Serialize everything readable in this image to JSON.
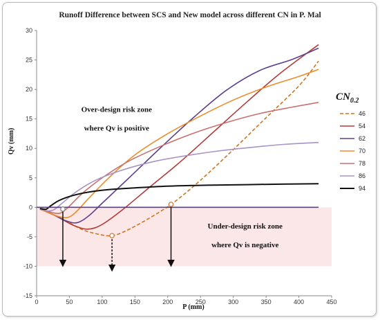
{
  "chart_data": {
    "type": "line",
    "title": "Runoff Difference between SCS and New model across different CN in P. Mal",
    "xlabel": "P (mm)",
    "ylabel": "Qv (mm)",
    "xlim": [
      0,
      450
    ],
    "ylim": [
      -15,
      30
    ],
    "xticks": [
      0,
      50,
      100,
      150,
      200,
      250,
      300,
      350,
      400,
      450
    ],
    "yticks": [
      -15,
      -10,
      -5,
      0,
      5,
      10,
      15,
      20,
      25,
      30
    ],
    "grid": false,
    "legend": {
      "position": "right",
      "title_main": "CN",
      "title_sub": "0.2"
    },
    "zones": [
      {
        "name": "over-design",
        "line1": "Over-design risk zone",
        "line2": "where Qv is positive",
        "y_range": [
          0,
          30
        ],
        "color": "#ffffff"
      },
      {
        "name": "under-design",
        "line1": "Under-design risk zone",
        "line2": "where Qv is negative",
        "y_range": [
          -10,
          0
        ],
        "color": "#fbe7e8"
      }
    ],
    "series": [
      {
        "name": "46",
        "color": "#d0741f",
        "dash": true,
        "points": [
          [
            5,
            -0.3
          ],
          [
            40,
            -2
          ],
          [
            70,
            -3.8
          ],
          [
            100,
            -4.7
          ],
          [
            115,
            -4.8
          ],
          [
            130,
            -4.3
          ],
          [
            160,
            -2.6
          ],
          [
            205,
            0.5
          ],
          [
            250,
            4.6
          ],
          [
            300,
            9.8
          ],
          [
            350,
            15.2
          ],
          [
            400,
            20.6
          ],
          [
            430,
            24.8
          ]
        ]
      },
      {
        "name": "54",
        "color": "#b43a3a",
        "dash": false,
        "points": [
          [
            5,
            -0.3
          ],
          [
            30,
            -1.5
          ],
          [
            55,
            -3
          ],
          [
            78,
            -3.7
          ],
          [
            100,
            -2.9
          ],
          [
            130,
            -0.5
          ],
          [
            170,
            3.2
          ],
          [
            220,
            7.8
          ],
          [
            270,
            12.8
          ],
          [
            320,
            17.8
          ],
          [
            370,
            22.6
          ],
          [
            430,
            27.6
          ]
        ]
      },
      {
        "name": "62",
        "color": "#5d3f8e",
        "dash": false,
        "points": [
          [
            5,
            -0.3
          ],
          [
            25,
            -1.2
          ],
          [
            45,
            -2.3
          ],
          [
            62,
            -2.6
          ],
          [
            80,
            -1.4
          ],
          [
            100,
            0.7
          ],
          [
            140,
            4.9
          ],
          [
            190,
            10.2
          ],
          [
            240,
            15.3
          ],
          [
            290,
            19.9
          ],
          [
            340,
            23.2
          ],
          [
            390,
            25.1
          ],
          [
            430,
            27
          ]
        ]
      },
      {
        "name": "70",
        "color": "#ee8c2a",
        "dash": false,
        "points": [
          [
            5,
            -0.3
          ],
          [
            20,
            -1
          ],
          [
            35,
            -1.6
          ],
          [
            48,
            -1.7
          ],
          [
            60,
            -0.8
          ],
          [
            80,
            1.6
          ],
          [
            110,
            5
          ],
          [
            150,
            8.9
          ],
          [
            200,
            12.5
          ],
          [
            250,
            15.5
          ],
          [
            300,
            18.2
          ],
          [
            350,
            20.4
          ],
          [
            400,
            22.2
          ],
          [
            430,
            23.4
          ]
        ]
      },
      {
        "name": "78",
        "color": "#c9706f",
        "dash": false,
        "points": [
          [
            5,
            -0.3
          ],
          [
            15,
            -0.6
          ],
          [
            28,
            -1
          ],
          [
            38,
            -0.9
          ],
          [
            50,
            0.2
          ],
          [
            70,
            2.4
          ],
          [
            100,
            5
          ],
          [
            140,
            7.8
          ],
          [
            190,
            10.4
          ],
          [
            240,
            12.6
          ],
          [
            290,
            14.4
          ],
          [
            340,
            15.9
          ],
          [
            390,
            17
          ],
          [
            430,
            17.8
          ]
        ]
      },
      {
        "name": "86",
        "color": "#a892c6",
        "dash": false,
        "points": [
          [
            5,
            -0.3
          ],
          [
            12,
            -0.5
          ],
          [
            20,
            -0.6
          ],
          [
            28,
            -0.3
          ],
          [
            40,
            0.8
          ],
          [
            60,
            2.6
          ],
          [
            90,
            4.6
          ],
          [
            130,
            6.3
          ],
          [
            180,
            7.8
          ],
          [
            230,
            8.8
          ],
          [
            280,
            9.6
          ],
          [
            330,
            10.2
          ],
          [
            380,
            10.7
          ],
          [
            430,
            11
          ]
        ]
      },
      {
        "name": "94",
        "color": "#111111",
        "dash": false,
        "points": [
          [
            5,
            -0.2
          ],
          [
            10,
            -0.3
          ],
          [
            15,
            -0.3
          ],
          [
            22,
            0.3
          ],
          [
            35,
            1.2
          ],
          [
            55,
            2
          ],
          [
            80,
            2.6
          ],
          [
            110,
            3
          ],
          [
            150,
            3.3
          ],
          [
            200,
            3.6
          ],
          [
            260,
            3.75
          ],
          [
            320,
            3.85
          ],
          [
            380,
            3.95
          ],
          [
            430,
            4
          ]
        ]
      },
      {
        "name": "",
        "color": "#5a3f8f",
        "dash": false,
        "points": [
          [
            0,
            0
          ],
          [
            430,
            0
          ]
        ]
      }
    ],
    "markers": [
      {
        "x": 40,
        "y": 0,
        "to_y": -10,
        "color": "#111111",
        "dashed": false
      },
      {
        "x": 115,
        "y": -4.8,
        "to_y": -10.8,
        "color": "#111111",
        "dashed": true
      },
      {
        "x": 205,
        "y": 0.5,
        "to_y": -10,
        "color": "#111111",
        "dashed": false
      }
    ],
    "circle_points": [
      {
        "x": 115,
        "y": -4.8,
        "color": "#c77c3a"
      },
      {
        "x": 205,
        "y": 0.5,
        "color": "#c77c3a"
      },
      {
        "x": 40,
        "y": -0.3,
        "color": "#888888"
      }
    ]
  }
}
